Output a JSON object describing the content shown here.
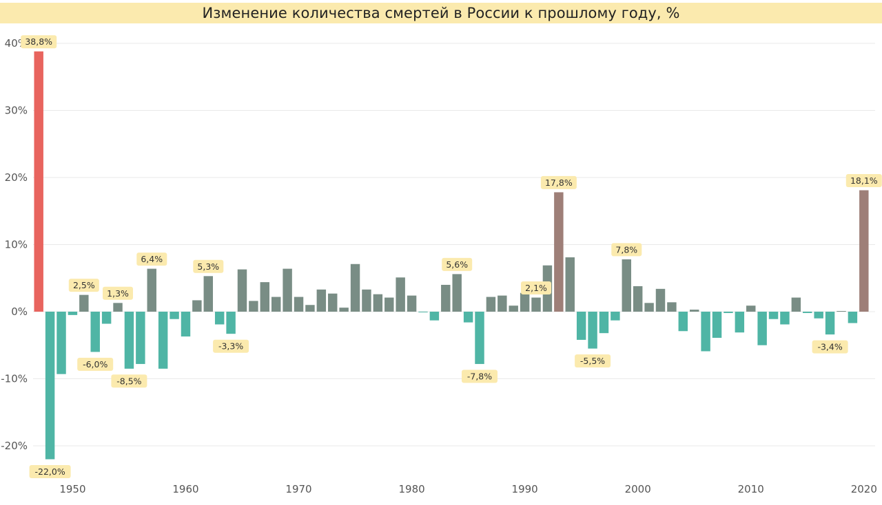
{
  "chart_data": {
    "type": "bar",
    "title": "Изменение количества смертей в России к прошлому году, %",
    "xlabel": "",
    "ylabel": "",
    "ylim": [
      -25,
      40
    ],
    "grid": true,
    "y_ticks": [
      "40%",
      "30%",
      "20%",
      "10%",
      "0%",
      "-10%",
      "-20%"
    ],
    "y_tick_values": [
      40,
      30,
      20,
      10,
      0,
      -10,
      -20
    ],
    "x_ticks": [
      "1950",
      "1960",
      "1970",
      "1980",
      "1990",
      "2000",
      "2010",
      "2020"
    ],
    "x_tick_values": [
      1950,
      1960,
      1970,
      1980,
      1990,
      2000,
      2010,
      2020
    ],
    "colors": {
      "highlight_1947": "#e8645e",
      "negative": "#4fb5a5",
      "positive": "#798d85",
      "highlight_brown": "#9e7f78",
      "title_bg": "#fbeaae",
      "label_bg": "#fbeaae"
    },
    "series": [
      {
        "x": [
          1947,
          1948,
          1949,
          1950,
          1951,
          1952,
          1953,
          1954,
          1955,
          1956,
          1957,
          1958,
          1959,
          1960,
          1961,
          1962,
          1963,
          1964,
          1965,
          1966,
          1967,
          1968,
          1969,
          1970,
          1971,
          1972,
          1973,
          1974,
          1975,
          1976,
          1977,
          1978,
          1979,
          1980,
          1981,
          1982,
          1983,
          1984,
          1985,
          1986,
          1987,
          1988,
          1989,
          1990,
          1991,
          1992,
          1993,
          1994,
          1995,
          1996,
          1997,
          1998,
          1999,
          2000,
          2001,
          2002,
          2003,
          2004,
          2005,
          2006,
          2007,
          2008,
          2009,
          2010,
          2011,
          2012,
          2013,
          2014,
          2015,
          2016,
          2017,
          2018,
          2019,
          2020
        ],
        "values": [
          38.8,
          -22.0,
          -9.3,
          -0.5,
          2.5,
          -6.0,
          -1.8,
          1.3,
          -8.5,
          -7.8,
          6.4,
          -8.5,
          -1.1,
          -3.7,
          1.7,
          5.3,
          -1.9,
          -3.3,
          6.3,
          1.6,
          4.4,
          2.2,
          6.4,
          2.2,
          1.0,
          3.3,
          2.7,
          0.6,
          7.1,
          3.3,
          2.6,
          2.1,
          5.1,
          2.4,
          -0.1,
          -1.3,
          4.0,
          5.6,
          -1.6,
          -7.8,
          2.2,
          2.4,
          0.9,
          2.8,
          2.1,
          6.9,
          17.8,
          8.1,
          -4.2,
          -5.5,
          -3.2,
          -1.3,
          7.8,
          3.8,
          1.3,
          3.4,
          1.4,
          -2.9,
          0.3,
          -5.9,
          -3.9,
          -0.2,
          -3.1,
          0.9,
          -5.0,
          -1.1,
          -1.9,
          2.1,
          -0.2,
          -1.0,
          -3.4,
          0.1,
          -1.7,
          18.1
        ]
      }
    ],
    "data_labels": [
      {
        "x": 1947,
        "text": "38,8%"
      },
      {
        "x": 1948,
        "text": "-22,0%"
      },
      {
        "x": 1951,
        "text": "2,5%"
      },
      {
        "x": 1952,
        "text": "-6,0%"
      },
      {
        "x": 1954,
        "text": "1,3%"
      },
      {
        "x": 1955,
        "text": "-8,5%"
      },
      {
        "x": 1957,
        "text": "6,4%"
      },
      {
        "x": 1962,
        "text": "5,3%"
      },
      {
        "x": 1964,
        "text": "-3,3%"
      },
      {
        "x": 1984,
        "text": "5,6%"
      },
      {
        "x": 1986,
        "text": "-7,8%"
      },
      {
        "x": 1991,
        "text": "2,1%"
      },
      {
        "x": 1993,
        "text": "17,8%"
      },
      {
        "x": 1996,
        "text": "-5,5%"
      },
      {
        "x": 1999,
        "text": "7,8%"
      },
      {
        "x": 2017,
        "text": "-3,4%"
      },
      {
        "x": 2020,
        "text": "18,1%"
      }
    ]
  }
}
